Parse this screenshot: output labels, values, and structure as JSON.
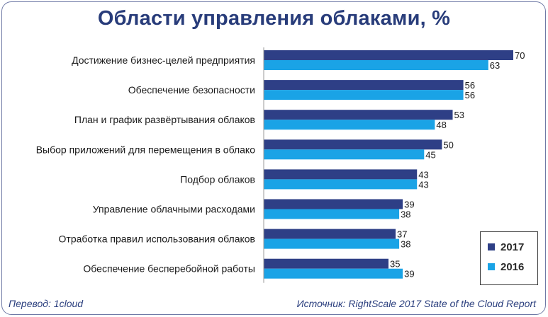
{
  "title": "Области управления облаками, %",
  "chart_data": {
    "type": "bar",
    "orientation": "horizontal",
    "title": "Области управления облаками, %",
    "categories": [
      "Достижение бизнес-целей предприятия",
      "Обеспечение безопасности",
      "План и график развёртывания облаков",
      "Выбор приложений для перемещения в облако",
      "Подбор облаков",
      "Управление облачными расходами",
      "Отработка правил использования облаков",
      "Обеспечение бесперебойной работы"
    ],
    "series": [
      {
        "name": "2017",
        "color": "#2e3f86",
        "values": [
          70,
          56,
          53,
          50,
          43,
          39,
          37,
          35
        ]
      },
      {
        "name": "2016",
        "color": "#1aa3e6",
        "values": [
          63,
          56,
          48,
          45,
          43,
          38,
          38,
          39
        ]
      }
    ],
    "xlim": [
      0,
      70
    ],
    "legend_position": "bottom-right"
  },
  "footer": {
    "translation": "Перевод: 1cloud",
    "source": "Источник: RightScale 2017 State of the Cloud Report"
  }
}
